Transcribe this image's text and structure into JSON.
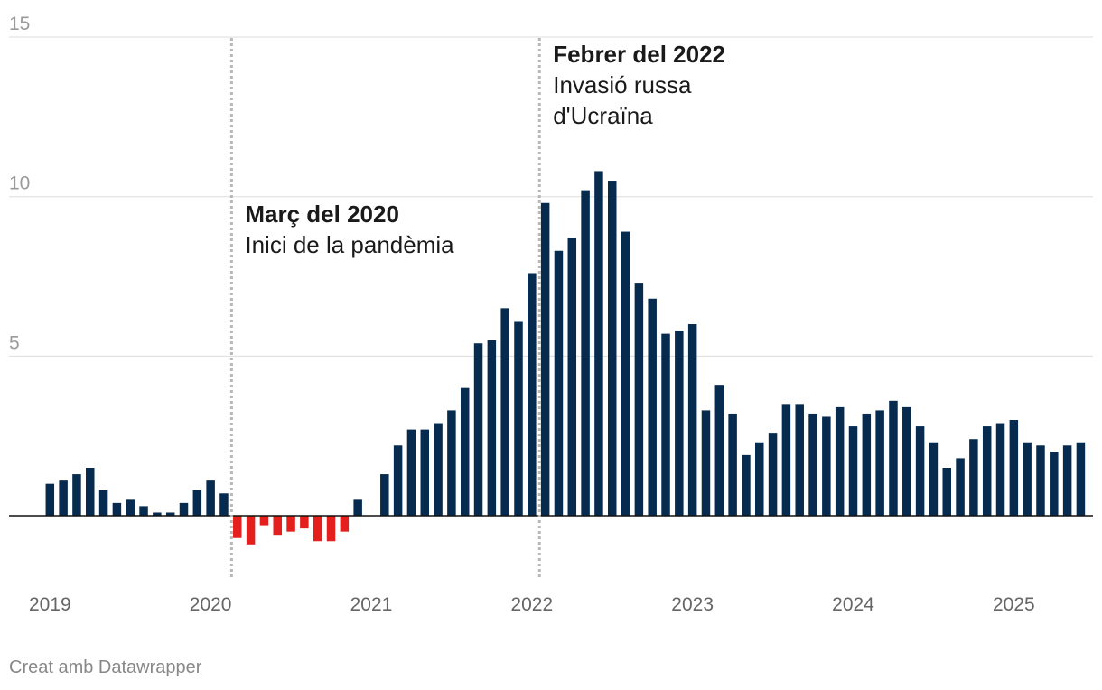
{
  "chart_data": {
    "type": "bar",
    "x_start": "2019-01",
    "x": [
      "2019-01",
      "2019-02",
      "2019-03",
      "2019-04",
      "2019-05",
      "2019-06",
      "2019-07",
      "2019-08",
      "2019-09",
      "2019-10",
      "2019-11",
      "2019-12",
      "2020-01",
      "2020-02",
      "2020-03",
      "2020-04",
      "2020-05",
      "2020-06",
      "2020-07",
      "2020-08",
      "2020-09",
      "2020-10",
      "2020-11",
      "2020-12",
      "2021-01",
      "2021-02",
      "2021-03",
      "2021-04",
      "2021-05",
      "2021-06",
      "2021-07",
      "2021-08",
      "2021-09",
      "2021-10",
      "2021-11",
      "2021-12",
      "2022-01",
      "2022-02",
      "2022-03",
      "2022-04",
      "2022-05",
      "2022-06",
      "2022-07",
      "2022-08",
      "2022-09",
      "2022-10",
      "2022-11",
      "2022-12",
      "2023-01",
      "2023-02",
      "2023-03",
      "2023-04",
      "2023-05",
      "2023-06",
      "2023-07",
      "2023-08",
      "2023-09",
      "2023-10",
      "2023-11",
      "2023-12",
      "2024-01",
      "2024-02",
      "2024-03",
      "2024-04",
      "2024-05",
      "2024-06",
      "2024-07",
      "2024-08",
      "2024-09",
      "2024-10",
      "2024-11",
      "2024-12",
      "2025-01",
      "2025-02",
      "2025-03",
      "2025-04",
      "2025-05",
      "2025-06"
    ],
    "values": [
      1.0,
      1.1,
      1.3,
      1.5,
      0.8,
      0.4,
      0.5,
      0.3,
      0.1,
      0.1,
      0.4,
      0.8,
      1.1,
      0.7,
      -0.7,
      -0.9,
      -0.3,
      -0.6,
      -0.5,
      -0.4,
      -0.8,
      -0.8,
      -0.5,
      0.5,
      0.0,
      1.3,
      2.2,
      2.7,
      2.7,
      2.9,
      3.3,
      4.0,
      5.4,
      5.5,
      6.5,
      6.1,
      7.6,
      9.8,
      8.3,
      8.7,
      10.2,
      10.8,
      10.5,
      8.9,
      7.3,
      6.8,
      5.7,
      5.8,
      6.0,
      3.3,
      4.1,
      3.2,
      1.9,
      2.3,
      2.6,
      3.5,
      3.5,
      3.2,
      3.1,
      3.4,
      2.8,
      3.2,
      3.3,
      3.6,
      3.4,
      2.8,
      2.3,
      1.5,
      1.8,
      2.4,
      2.8,
      2.9,
      3.0,
      2.3,
      2.2,
      2.0,
      2.2,
      2.3
    ],
    "ylim": [
      -2,
      15
    ],
    "yticks": [
      5,
      10,
      15
    ],
    "xticks": [
      {
        "date": "2019-01",
        "label": "2019"
      },
      {
        "date": "2020-01",
        "label": "2020"
      },
      {
        "date": "2021-01",
        "label": "2021"
      },
      {
        "date": "2022-01",
        "label": "2022"
      },
      {
        "date": "2023-01",
        "label": "2023"
      },
      {
        "date": "2024-01",
        "label": "2024"
      },
      {
        "date": "2025-01",
        "label": "2025"
      }
    ],
    "colors": {
      "positive": "#062b4f",
      "negative": "#e3201d"
    },
    "grid": true,
    "annotations": [
      {
        "date": "2020-03",
        "title": "Març del 2020",
        "lines": [
          "Inici de la pandèmia"
        ]
      },
      {
        "date": "2022-02",
        "title": "Febrer del 2022",
        "lines": [
          "Invasió russa",
          "d'Ucraïna"
        ]
      }
    ]
  },
  "credit": "Creat amb Datawrapper"
}
